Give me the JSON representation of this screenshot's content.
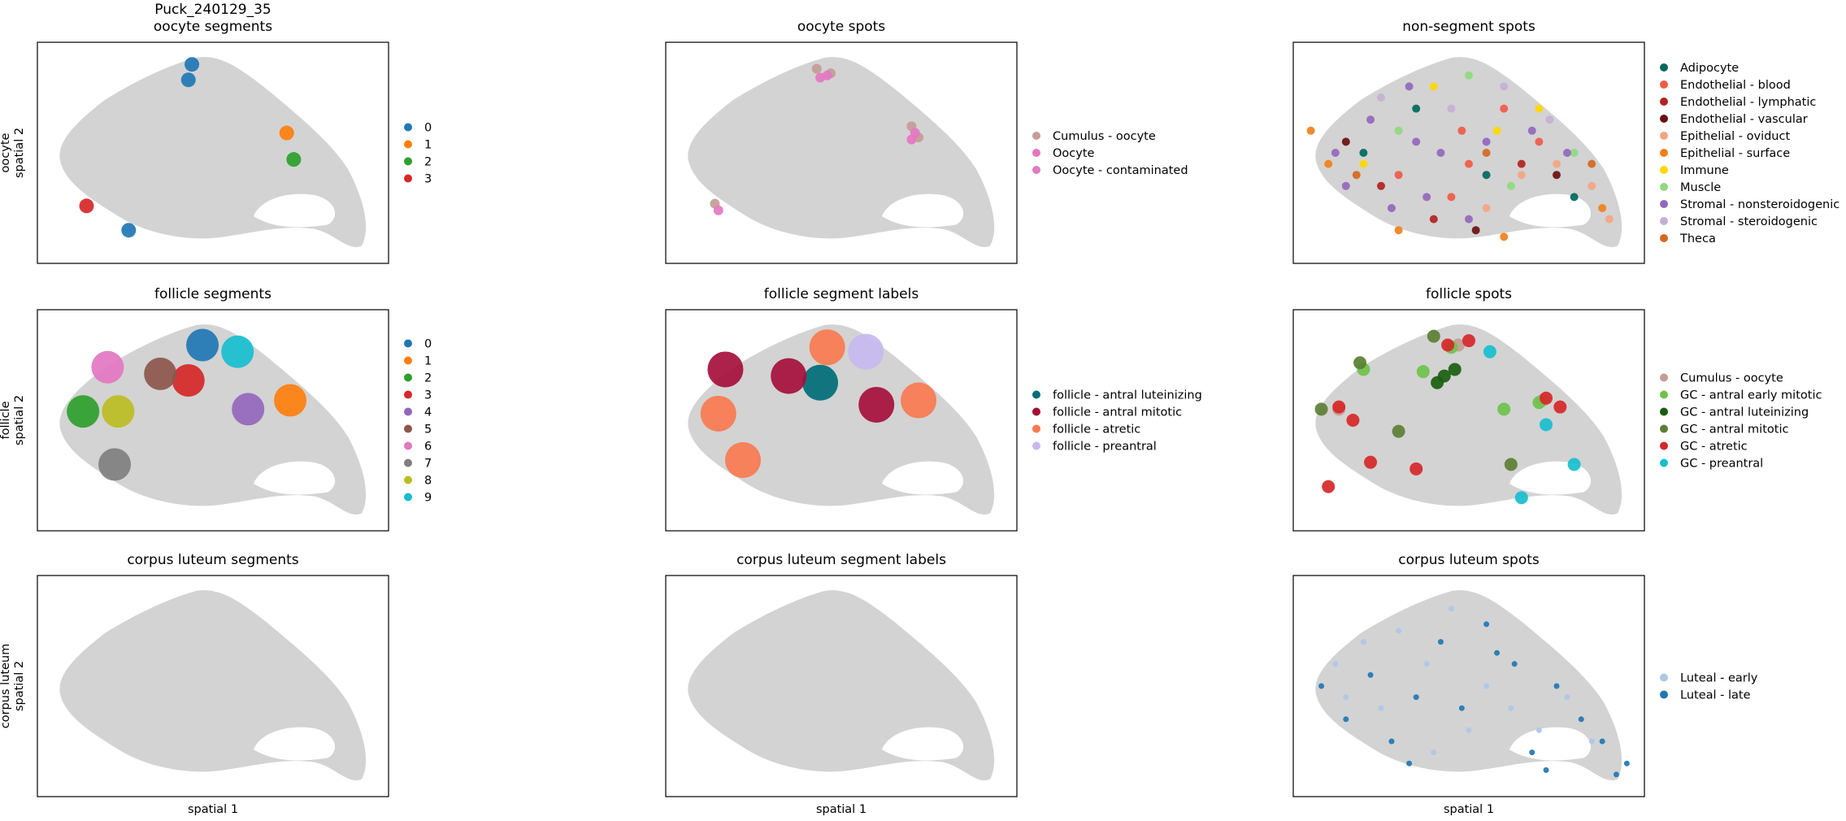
{
  "chart_data": [
    {
      "type": "scatter",
      "title": [
        "Puck_240129_35",
        "oocyte segments"
      ],
      "ylabel": [
        "oocyte",
        "spatial 2"
      ],
      "series": [
        {
          "name": "0",
          "color": "#1f77b4",
          "x": [
            44,
            43,
            26
          ],
          "y": [
            90,
            83,
            15
          ]
        },
        {
          "name": "1",
          "color": "#ff7f0e",
          "x": [
            71
          ],
          "y": [
            59
          ]
        },
        {
          "name": "2",
          "color": "#2ca02c",
          "x": [
            73
          ],
          "y": [
            47
          ]
        },
        {
          "name": "3",
          "color": "#d62728",
          "x": [
            14
          ],
          "y": [
            26
          ]
        }
      ]
    },
    {
      "type": "scatter",
      "title": "oocyte spots",
      "series": [
        {
          "name": "Cumulus - oocyte",
          "color": "#c49c94",
          "x": [
            43,
            47,
            70,
            72,
            14
          ],
          "y": [
            88,
            86,
            62,
            57,
            27
          ]
        },
        {
          "name": "Oocyte",
          "color": "#e377c2",
          "x": [
            44,
            71,
            15
          ],
          "y": [
            84,
            59,
            24
          ]
        },
        {
          "name": "Oocyte - contaminated",
          "color": "#e377c2",
          "x": [
            46,
            70
          ],
          "y": [
            85,
            56
          ]
        }
      ]
    },
    {
      "type": "scatter",
      "title": "non-segment spots",
      "series": [
        {
          "name": "Adipocyte",
          "color": "#00695c",
          "x": [
            20,
            55,
            80,
            35
          ],
          "y": [
            50,
            40,
            30,
            70
          ]
        },
        {
          "name": "Endothelial - blood",
          "color": "#f05a48",
          "x": [
            48,
            50,
            45,
            60,
            30,
            70
          ],
          "y": [
            60,
            45,
            30,
            70,
            40,
            55
          ]
        },
        {
          "name": "Endothelial - lymphatic",
          "color": "#b22222",
          "x": [
            25,
            65,
            40
          ],
          "y": [
            35,
            45,
            20
          ]
        },
        {
          "name": "Endothelial - vascular",
          "color": "#6b0f0f",
          "x": [
            15,
            75,
            52
          ],
          "y": [
            55,
            40,
            15
          ]
        },
        {
          "name": "Epithelial - oviduct",
          "color": "#f4a582",
          "x": [
            65,
            75,
            85,
            55,
            90
          ],
          "y": [
            40,
            45,
            35,
            25,
            20
          ]
        },
        {
          "name": "Epithelial - surface",
          "color": "#f0801a",
          "x": [
            10,
            30,
            60,
            88,
            5
          ],
          "y": [
            45,
            15,
            12,
            25,
            60
          ]
        },
        {
          "name": "Immune",
          "color": "#ffd700",
          "x": [
            40,
            58,
            70,
            20
          ],
          "y": [
            80,
            60,
            70,
            45
          ]
        },
        {
          "name": "Muscle",
          "color": "#90d97e",
          "x": [
            50,
            30,
            80,
            62
          ],
          "y": [
            85,
            60,
            50,
            35
          ]
        },
        {
          "name": "Stromal - nonsteroidogenic",
          "color": "#9467bd",
          "x": [
            12,
            22,
            35,
            38,
            28,
            42,
            55,
            68,
            78,
            15,
            33,
            50
          ],
          "y": [
            50,
            65,
            55,
            30,
            25,
            50,
            55,
            60,
            50,
            35,
            80,
            20
          ]
        },
        {
          "name": "Stromal - steroidogenic",
          "color": "#c5b0d5",
          "x": [
            25,
            45,
            60,
            73
          ],
          "y": [
            75,
            70,
            80,
            65
          ]
        },
        {
          "name": "Theca",
          "color": "#d2691e",
          "x": [
            18,
            55,
            85
          ],
          "y": [
            40,
            50,
            45
          ]
        }
      ]
    },
    {
      "type": "scatter",
      "title": "follicle segments",
      "ylabel": [
        "follicle",
        "spatial 2"
      ],
      "series": [
        {
          "name": "0",
          "color": "#1f77b4",
          "x": [
            47
          ],
          "y": [
            84
          ]
        },
        {
          "name": "1",
          "color": "#ff7f0e",
          "x": [
            72
          ],
          "y": [
            59
          ]
        },
        {
          "name": "2",
          "color": "#2ca02c",
          "x": [
            13
          ],
          "y": [
            54
          ]
        },
        {
          "name": "3",
          "color": "#d62728",
          "x": [
            43
          ],
          "y": [
            68
          ]
        },
        {
          "name": "4",
          "color": "#9467bd",
          "x": [
            60
          ],
          "y": [
            55
          ]
        },
        {
          "name": "5",
          "color": "#8c564b",
          "x": [
            35
          ],
          "y": [
            71
          ]
        },
        {
          "name": "6",
          "color": "#e377c2",
          "x": [
            20
          ],
          "y": [
            74
          ]
        },
        {
          "name": "7",
          "color": "#7f7f7f",
          "x": [
            22
          ],
          "y": [
            30
          ]
        },
        {
          "name": "8",
          "color": "#bcbd22",
          "x": [
            23
          ],
          "y": [
            54
          ]
        },
        {
          "name": "9",
          "color": "#17becf",
          "x": [
            57
          ],
          "y": [
            81
          ]
        }
      ]
    },
    {
      "type": "scatter",
      "title": "follicle segment labels",
      "series": [
        {
          "name": "follicle - antral luteinizing",
          "color": "#006d77",
          "x": [
            44
          ],
          "y": [
            67
          ]
        },
        {
          "name": "follicle - antral mitotic",
          "color": "#a50f3c",
          "x": [
            17,
            35,
            60
          ],
          "y": [
            73,
            70,
            57
          ]
        },
        {
          "name": "follicle - atretic",
          "color": "#f97a4f",
          "x": [
            46,
            72,
            15,
            22
          ],
          "y": [
            83,
            59,
            53,
            32
          ]
        },
        {
          "name": "follicle - preantral",
          "color": "#c7b8f0",
          "x": [
            57
          ],
          "y": [
            81
          ]
        }
      ]
    },
    {
      "type": "scatter",
      "title": "follicle spots",
      "series": [
        {
          "name": "Cumulus - oocyte",
          "color": "#c49c94",
          "x": [
            47,
            71,
            13
          ],
          "y": [
            84,
            59,
            55
          ]
        },
        {
          "name": "GC - antral early mitotic",
          "color": "#6cc24a",
          "x": [
            20,
            60,
            37,
            70,
            45
          ],
          "y": [
            73,
            55,
            72,
            58,
            83
          ]
        },
        {
          "name": "GC - antral luteinizing",
          "color": "#1a5e0f",
          "x": [
            43,
            41,
            46
          ],
          "y": [
            70,
            67,
            73
          ]
        },
        {
          "name": "GC - antral mitotic",
          "color": "#5b7f33",
          "x": [
            8,
            19,
            40,
            30,
            62
          ],
          "y": [
            55,
            76,
            88,
            45,
            30
          ]
        },
        {
          "name": "GC - atretic",
          "color": "#d62728",
          "x": [
            13,
            17,
            44,
            50,
            72,
            76,
            22,
            35,
            10
          ],
          "y": [
            56,
            50,
            84,
            86,
            60,
            56,
            31,
            28,
            20
          ]
        },
        {
          "name": "GC - preantral",
          "color": "#17becf",
          "x": [
            56,
            72,
            65,
            80
          ],
          "y": [
            81,
            48,
            15,
            30
          ]
        }
      ]
    },
    {
      "type": "scatter",
      "title": "corpus luteum segments",
      "ylabel": [
        "corpus luteum",
        "spatial 2"
      ],
      "xlabel": "spatial 1",
      "series": []
    },
    {
      "type": "scatter",
      "title": "corpus luteum segment labels",
      "xlabel": "spatial 1",
      "series": []
    },
    {
      "type": "scatter",
      "title": "corpus luteum spots",
      "xlabel": "spatial 1",
      "series": [
        {
          "name": "Luteal - early",
          "color": "#aec7e8",
          "x": [
            12,
            20,
            30,
            38,
            45,
            55,
            62,
            70,
            78,
            85,
            25,
            50,
            15,
            40
          ],
          "y": [
            60,
            70,
            75,
            60,
            85,
            50,
            40,
            30,
            45,
            25,
            40,
            30,
            45,
            20
          ]
        },
        {
          "name": "Luteal - late",
          "color": "#1f77b4",
          "x": [
            8,
            15,
            22,
            28,
            35,
            42,
            48,
            55,
            63,
            68,
            75,
            82,
            88,
            92,
            95,
            58,
            33,
            72
          ],
          "y": [
            50,
            35,
            55,
            25,
            45,
            70,
            40,
            78,
            60,
            20,
            50,
            35,
            25,
            10,
            15,
            65,
            15,
            12
          ]
        }
      ]
    }
  ]
}
